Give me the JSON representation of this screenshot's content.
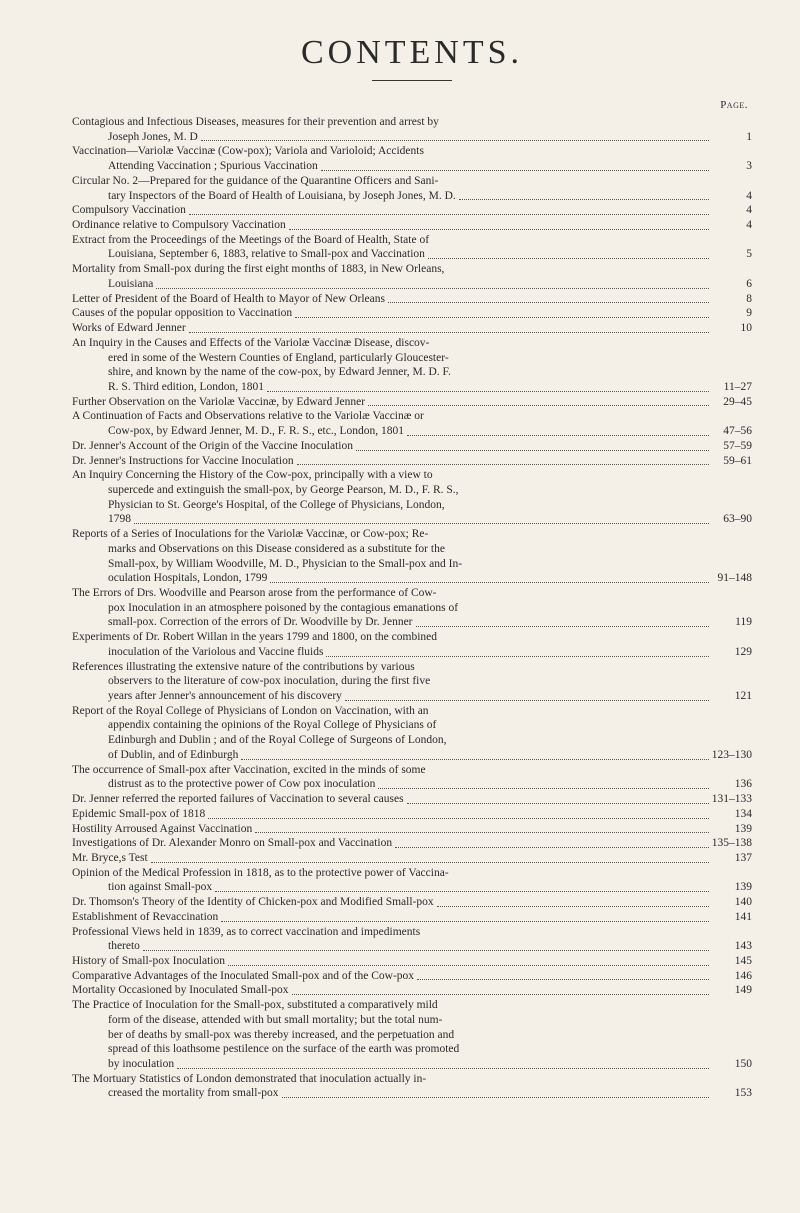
{
  "title": "CONTENTS.",
  "pageLabel": "Page.",
  "entries": [
    {
      "lines": [
        "Contagious and Infectious Diseases, measures for their prevention and arrest by",
        "Joseph Jones, M. D"
      ],
      "page": "1"
    },
    {
      "lines": [
        "Vaccination—Variolæ Vaccinæ (Cow-pox); Variola and Varioloid; Accidents",
        "Attending Vaccination ; Spurious Vaccination"
      ],
      "page": "3"
    },
    {
      "lines": [
        "Circular No. 2—Prepared for the guidance of the Quarantine Officers and Sani-",
        "tary Inspectors of the Board of Health of Louisiana, by Joseph Jones, M. D."
      ],
      "page": "4"
    },
    {
      "lines": [
        "Compulsory Vaccination"
      ],
      "page": "4"
    },
    {
      "lines": [
        "Ordinance relative to Compulsory Vaccination"
      ],
      "page": "4"
    },
    {
      "lines": [
        "Extract from the Proceedings of the Meetings of the Board of Health, State of",
        "Louisiana, September 6, 1883, relative to Small-pox and Vaccination"
      ],
      "page": "5"
    },
    {
      "lines": [
        "Mortality from Small-pox during the first eight months of 1883, in New Orleans,",
        "Louisiana"
      ],
      "page": "6"
    },
    {
      "lines": [
        "Letter of President of the Board of Health to Mayor of New Orleans"
      ],
      "page": "8"
    },
    {
      "lines": [
        "Causes of the popular opposition to Vaccination"
      ],
      "page": "9"
    },
    {
      "lines": [
        "Works of Edward Jenner"
      ],
      "page": "10"
    },
    {
      "lines": [
        "An Inquiry in the Causes and Effects of the Variolæ Vaccinæ Disease, discov-",
        "ered in some of the Western Counties of England, particularly Gloucester-",
        "shire, and known by the name of the cow-pox, by Edward Jenner, M. D. F.",
        "R. S.  Third edition, London, 1801"
      ],
      "page": "11–27"
    },
    {
      "lines": [
        "Further Observation on the Variolæ Vaccinæ, by Edward Jenner"
      ],
      "page": "29–45"
    },
    {
      "lines": [
        "A Continuation of Facts and Observations relative to the Variolæ Vaccinæ or",
        "Cow-pox, by Edward Jenner, M. D., F. R. S., etc., London, 1801"
      ],
      "page": "47–56"
    },
    {
      "lines": [
        "Dr. Jenner's Account of the Origin of the Vaccine Inoculation"
      ],
      "page": "57–59"
    },
    {
      "lines": [
        "Dr. Jenner's Instructions for Vaccine Inoculation"
      ],
      "page": "59–61"
    },
    {
      "lines": [
        "An Inquiry Concerning the History of the Cow-pox, principally with a view to",
        "supercede and extinguish the small-pox, by George Pearson, M. D., F. R. S.,",
        "Physician to St. George's Hospital, of the College of Physicians, London,",
        "1798"
      ],
      "page": "63–90"
    },
    {
      "lines": [
        "Reports of a Series of Inoculations for the Variolæ Vaccinæ, or Cow-pox; Re-",
        "marks and Observations on this Disease considered as a substitute for the",
        "Small-pox, by William Woodville, M. D., Physician to the Small-pox and In-",
        "oculation Hospitals, London, 1799"
      ],
      "page": "91–148"
    },
    {
      "lines": [
        "The Errors of Drs. Woodville and Pearson arose from the performance of Cow-",
        "pox Inoculation in an atmosphere poisoned by the contagious emanations of",
        "small-pox.  Correction of the errors of Dr. Woodville by Dr. Jenner"
      ],
      "page": "119"
    },
    {
      "lines": [
        "Experiments of Dr. Robert Willan in the years 1799 and 1800, on the combined",
        "inoculation of the Variolous and Vaccine fluids"
      ],
      "page": "129"
    },
    {
      "lines": [
        "References illustrating the extensive nature of the contributions by various",
        "observers to the literature of cow-pox inoculation, during the first five",
        "years after Jenner's announcement of his discovery"
      ],
      "page": "121"
    },
    {
      "lines": [
        "Report of the Royal College of Physicians of London on Vaccination, with an",
        "appendix containing the opinions of the Royal College of Physicians of",
        "Edinburgh and Dublin ; and of the Royal College of Surgeons of London,",
        "of Dublin, and of Edinburgh"
      ],
      "page": "123–130"
    },
    {
      "lines": [
        "The occurrence of Small-pox after Vaccination, excited in the minds of some",
        "distrust as to the protective power of Cow pox inoculation"
      ],
      "page": "136"
    },
    {
      "lines": [
        "Dr. Jenner referred the reported failures of Vaccination to several causes"
      ],
      "page": "131–133"
    },
    {
      "lines": [
        "Epidemic Small-pox of 1818"
      ],
      "page": "134"
    },
    {
      "lines": [
        "Hostility Arroused Against Vaccination"
      ],
      "page": "139"
    },
    {
      "lines": [
        "Investigations of Dr. Alexander Monro on Small-pox and Vaccination"
      ],
      "page": "135–138"
    },
    {
      "lines": [
        "Mr. Bryce,s Test"
      ],
      "page": "137"
    },
    {
      "lines": [
        "Opinion of the Medical Profession in 1818, as to the protective power of Vaccina-",
        "tion against Small-pox"
      ],
      "page": "139"
    },
    {
      "lines": [
        "Dr. Thomson's Theory of the Identity of Chicken-pox and Modified Small-pox"
      ],
      "page": "140"
    },
    {
      "lines": [
        "Establishment of Revaccination"
      ],
      "page": "141"
    },
    {
      "lines": [
        "Professional Views held in 1839, as to correct vaccination and impediments",
        "thereto"
      ],
      "page": "143"
    },
    {
      "lines": [
        "History of Small-pox Inoculation"
      ],
      "page": "145"
    },
    {
      "lines": [
        "Comparative Advantages of the Inoculated Small-pox and of the Cow-pox"
      ],
      "page": "146"
    },
    {
      "lines": [
        "Mortality Occasioned by Inoculated Small-pox"
      ],
      "page": "149"
    },
    {
      "lines": [
        "The Practice of Inoculation for the Small-pox, substituted a comparatively mild",
        "form of the disease, attended with but small mortality; but the total num-",
        "ber of deaths by small-pox was thereby increased, and the perpetuation and",
        "spread of this loathsome pestilence on the surface of the earth was promoted",
        "by inoculation"
      ],
      "page": "150"
    },
    {
      "lines": [
        "The Mortuary Statistics of London demonstrated that inoculation actually in-",
        "creased the mortality from small-pox"
      ],
      "page": "153"
    }
  ]
}
